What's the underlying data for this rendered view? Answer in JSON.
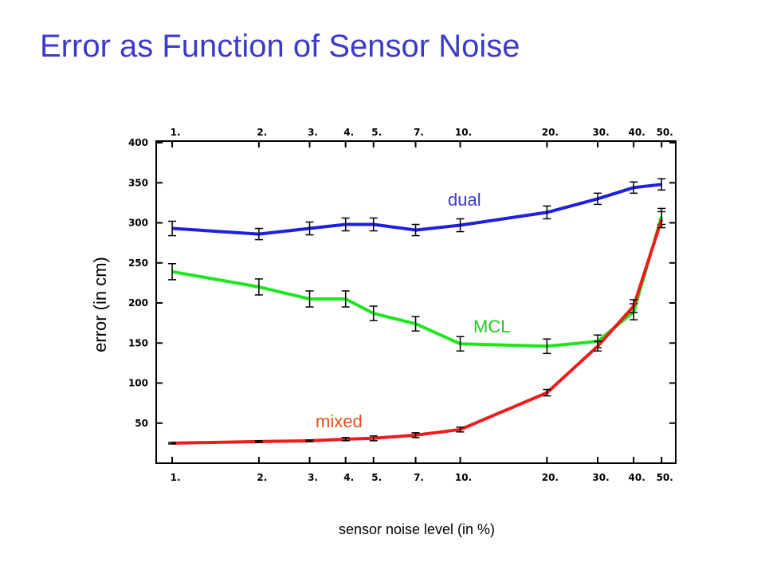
{
  "slide": {
    "title": "Error as Function of Sensor Noise"
  },
  "chart_data": {
    "type": "line",
    "title": "",
    "xlabel": "sensor noise level (in %)",
    "ylabel": "error (in cm)",
    "x_scale": "log",
    "x_ticks": [
      1,
      2,
      3,
      4,
      5,
      7,
      10,
      20,
      30,
      40,
      50
    ],
    "x_tick_labels": [
      "1.",
      "2.",
      "3.",
      "4.",
      "5.",
      "7.",
      "10.",
      "20.",
      "30.",
      "40.",
      "50."
    ],
    "y_ticks": [
      50,
      100,
      150,
      200,
      250,
      300,
      350,
      400
    ],
    "y_tick_labels": [
      "50",
      "100",
      "150",
      "200",
      "250",
      "300",
      "350",
      "400"
    ],
    "xlim": [
      0.88,
      56
    ],
    "ylim": [
      0,
      402
    ],
    "grid": false,
    "legend": "inline series labels",
    "series": [
      {
        "name": "dual",
        "color": "#1f1fe0",
        "label_color": "#3b3bc9",
        "x": [
          1,
          2,
          3,
          4,
          5,
          7,
          10,
          20,
          30,
          40,
          50
        ],
        "values": [
          293,
          286,
          293,
          298,
          298,
          291,
          297,
          313,
          330,
          344,
          348
        ],
        "error": [
          9,
          7,
          8,
          8,
          8,
          7,
          8,
          8,
          7,
          7,
          7
        ]
      },
      {
        "name": "MCL",
        "color": "#1ee61e",
        "label_color": "#22cc22",
        "x": [
          1,
          2,
          3,
          4,
          5,
          7,
          10,
          20,
          30,
          40,
          50
        ],
        "values": [
          239,
          220,
          205,
          205,
          187,
          174,
          149,
          146,
          152,
          189,
          308
        ],
        "error": [
          10,
          10,
          10,
          10,
          9,
          9,
          9,
          9,
          8,
          10,
          10
        ]
      },
      {
        "name": "mixed",
        "color": "#ee1c1c",
        "label_color": "#e84e1c",
        "x": [
          1,
          2,
          3,
          4,
          5,
          7,
          10,
          20,
          30,
          40,
          50
        ],
        "values": [
          25,
          27,
          28,
          30,
          31,
          35,
          42,
          88,
          146,
          196,
          304
        ],
        "error": [
          1,
          1,
          1,
          2,
          3,
          3,
          3,
          4,
          6,
          8,
          10
        ]
      }
    ]
  }
}
